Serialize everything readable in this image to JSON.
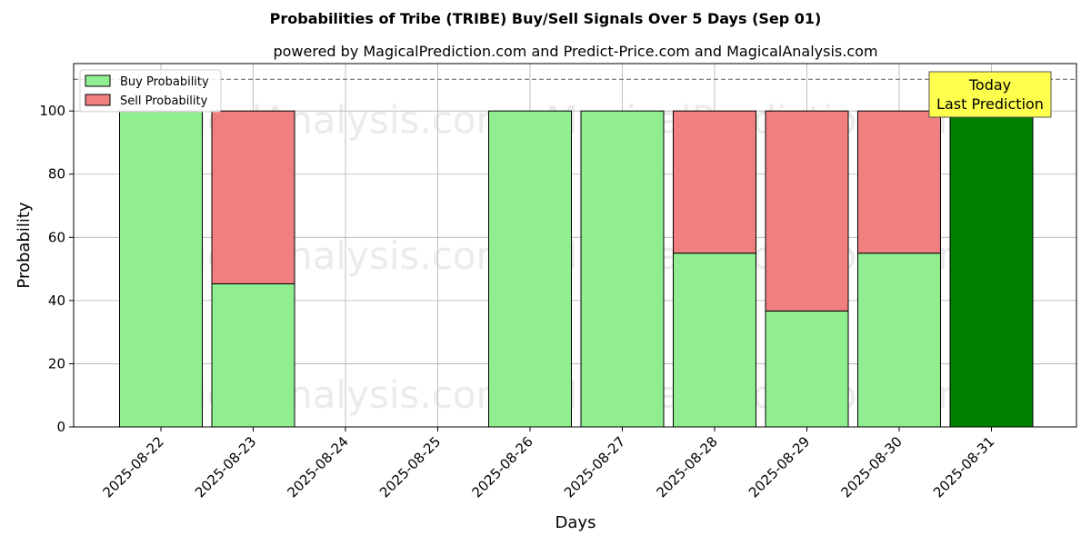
{
  "chart_data": {
    "type": "bar",
    "stacked": true,
    "title": "Probabilities of Tribe (TRIBE) Buy/Sell Signals Over 5 Days (Sep 01)",
    "subtitle": "powered by MagicalPrediction.com and Predict-Price.com and MagicalAnalysis.com",
    "xlabel": "Days",
    "ylabel": "Probability",
    "ylim": [
      0,
      115
    ],
    "yticks": [
      0,
      20,
      40,
      60,
      80,
      100
    ],
    "grid": true,
    "legend_position": "top-left",
    "categories": [
      "2025-08-22",
      "2025-08-23",
      "2025-08-24",
      "2025-08-25",
      "2025-08-26",
      "2025-08-27",
      "2025-08-28",
      "2025-08-29",
      "2025-08-30",
      "2025-08-31"
    ],
    "series": [
      {
        "name": "Buy Probability",
        "color": "#90ee90",
        "values": [
          100,
          45.3,
          null,
          null,
          100,
          100,
          55,
          36.7,
          55,
          100
        ]
      },
      {
        "name": "Sell Probability",
        "color": "#f08080",
        "values": [
          0,
          54.7,
          null,
          null,
          0,
          0,
          45,
          63.3,
          45,
          0
        ]
      }
    ],
    "highlight": {
      "category": "2025-08-31",
      "color": "#008000"
    },
    "reference_line": {
      "value": 110,
      "style": "dashed",
      "color": "#808080"
    },
    "annotation": {
      "lines": [
        "Today",
        "Last Prediction"
      ],
      "background": "#ffff4d"
    },
    "watermarks": [
      "MagicalAnalysis.com",
      "MagicalPrediction.com"
    ]
  }
}
